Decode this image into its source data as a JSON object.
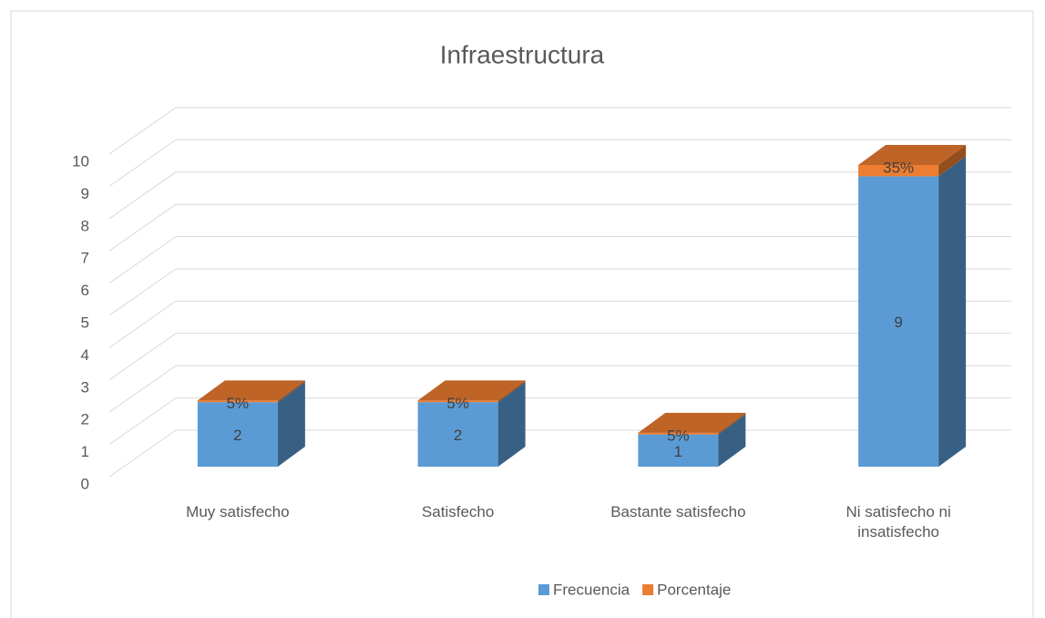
{
  "chart_data": {
    "type": "bar3d_stacked",
    "title": "Infraestructura",
    "categories": [
      "Muy satisfecho",
      "Satisfecho",
      "Bastante satisfecho",
      "Ni satisfecho ni insatisfecho"
    ],
    "series": [
      {
        "name": "Frecuencia",
        "color": "#5b9bd5",
        "values": [
          2,
          2,
          1,
          9
        ]
      },
      {
        "name": "Porcentaje",
        "color": "#ed7d31",
        "values": [
          0.05,
          0.05,
          0.05,
          0.35
        ],
        "value_labels": [
          "5%",
          "5%",
          "5%",
          "35%"
        ]
      }
    ],
    "ylim": [
      0,
      10
    ],
    "yticks": [
      0,
      1,
      2,
      3,
      4,
      5,
      6,
      7,
      8,
      9,
      10
    ],
    "grid": true,
    "legend": "bottom"
  }
}
